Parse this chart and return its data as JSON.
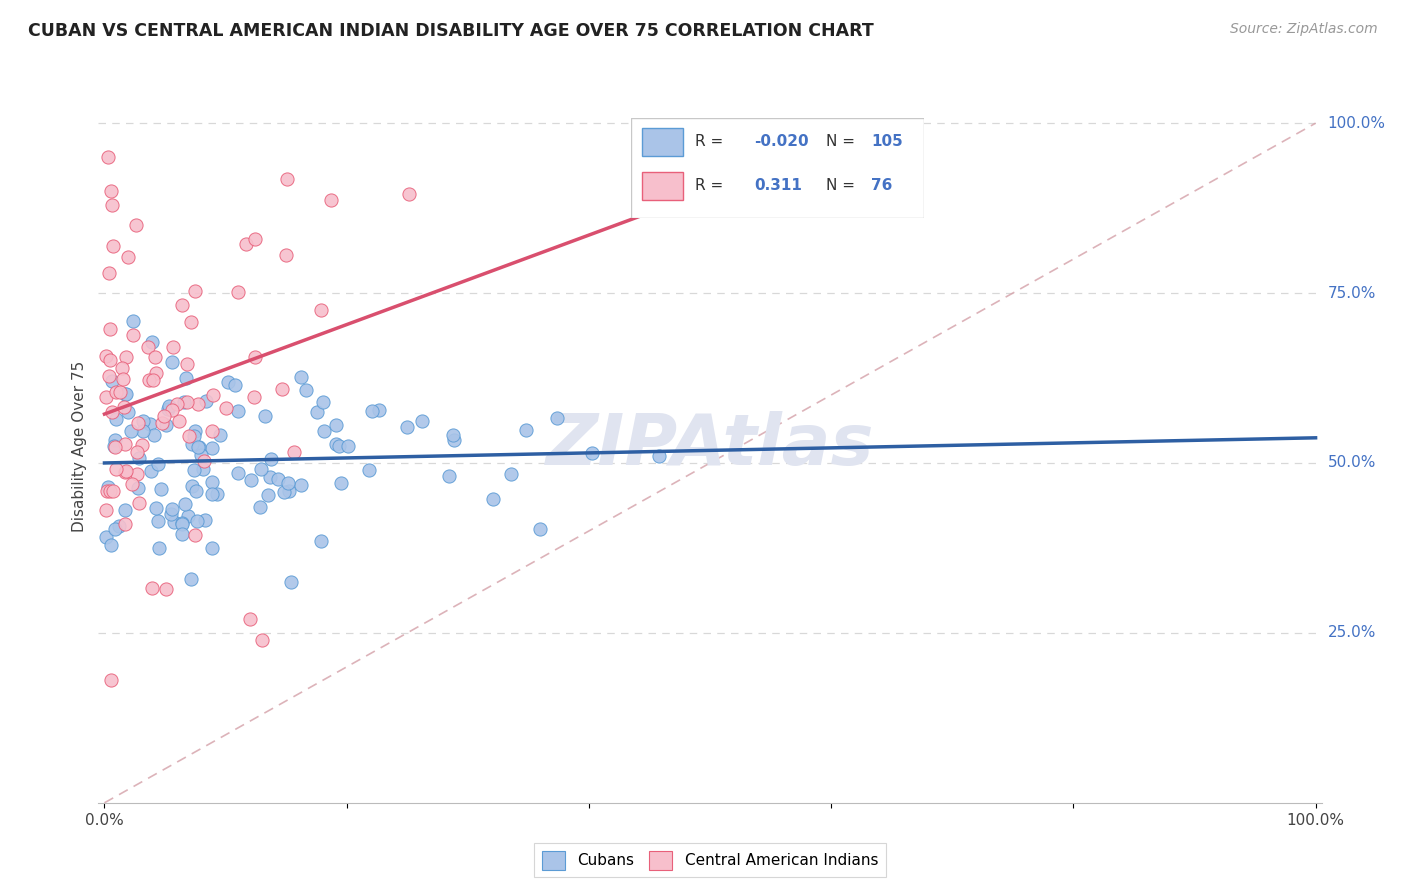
{
  "title": "CUBAN VS CENTRAL AMERICAN INDIAN DISABILITY AGE OVER 75 CORRELATION CHART",
  "source": "Source: ZipAtlas.com",
  "ylabel": "Disability Age Over 75",
  "cubans_R": -0.02,
  "cubans_N": 105,
  "central_american_R": 0.311,
  "central_american_N": 76,
  "cubans_color": "#aac4e8",
  "cubans_edge_color": "#5b9bd5",
  "cubans_trend_color": "#2e5fa3",
  "central_american_color": "#f7bfcc",
  "central_american_edge_color": "#e8607a",
  "central_american_trend_color": "#d94f6e",
  "dashed_line_color": "#d4a0a8",
  "right_axis_color": "#4472c4",
  "watermark_color": "#e0e4f0",
  "grid_color": "#d8d8d8",
  "legend_box_edge": "#cccccc"
}
